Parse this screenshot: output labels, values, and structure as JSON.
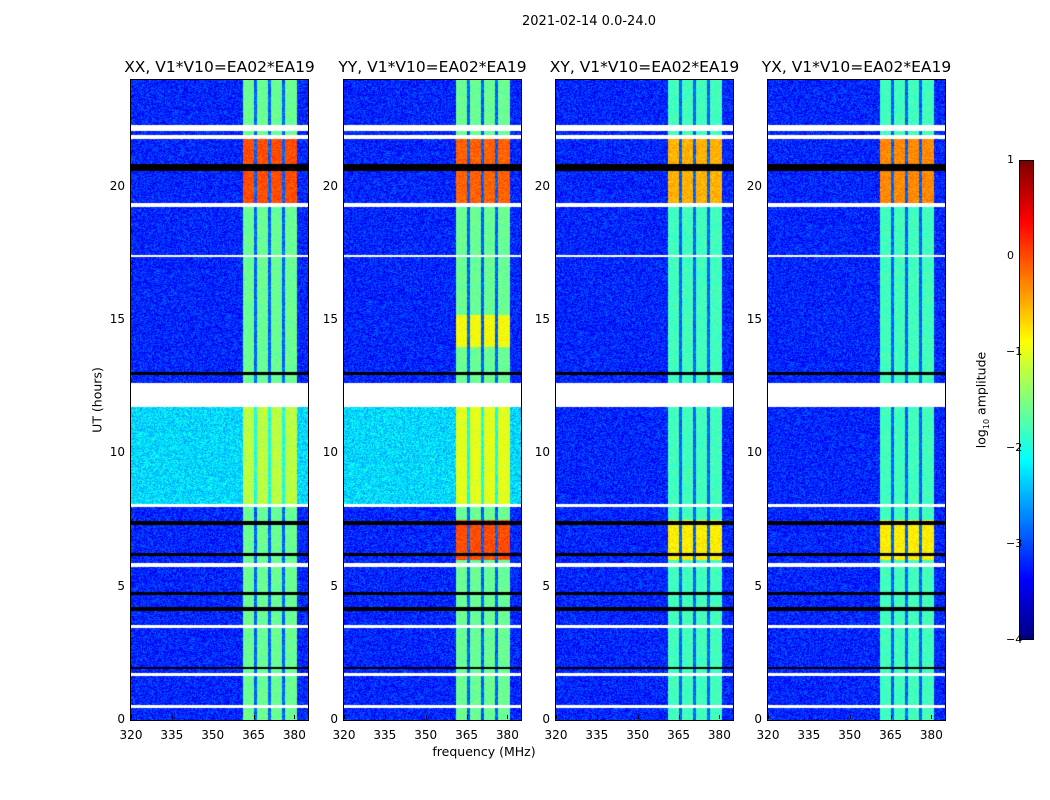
{
  "suptitle": "2021-02-14 0.0-24.0",
  "chart_data": {
    "type": "heatmap",
    "xlabel": "frequency (MHz)",
    "ylabel": "UT (hours)",
    "xlim": [
      320,
      385
    ],
    "ylim": [
      0,
      24
    ],
    "xticks": [
      "320",
      "335",
      "350",
      "365",
      "380"
    ],
    "xtick_values": [
      320,
      335,
      350,
      365,
      380
    ],
    "yticks": [
      "0",
      "5",
      "10",
      "15",
      "20"
    ],
    "ytick_values": [
      0,
      5,
      10,
      15,
      20
    ],
    "colorbar": {
      "label_pre": "log",
      "label_sub": "10",
      "label_post": " amplitude",
      "range": [
        -4,
        1
      ],
      "ticks": [
        "1",
        "0",
        "−1",
        "−2",
        "−3",
        "−4"
      ],
      "tick_values": [
        1,
        0,
        -1,
        -2,
        -3,
        -4
      ],
      "colormap": "jet"
    },
    "background_level": -3.2,
    "signal_band_mhz": [
      361,
      380.8
    ],
    "signal_gap_channels_mhz": [
      365.7,
      370.9,
      376.0
    ],
    "flagged_white_hours": [
      [
        22.1,
        22.3
      ],
      [
        21.8,
        21.95
      ],
      [
        19.25,
        19.4
      ],
      [
        17.35,
        17.45
      ],
      [
        11.75,
        12.65
      ],
      [
        8.0,
        8.1
      ],
      [
        5.75,
        5.9
      ],
      [
        3.45,
        3.55
      ],
      [
        1.65,
        1.75
      ],
      [
        0.45,
        0.55
      ]
    ],
    "flagged_black_hours": [
      [
        20.6,
        20.85
      ],
      [
        12.95,
        13.05
      ],
      [
        7.3,
        7.45
      ],
      [
        6.15,
        6.25
      ],
      [
        4.7,
        4.8
      ],
      [
        4.1,
        4.25
      ],
      [
        1.9,
        2.0
      ]
    ],
    "panels": [
      {
        "title": "XX, V1*V10=EA02*EA19",
        "band_level": -1.6,
        "regions": [
          {
            "t": [
              19.4,
              21.8
            ],
            "band": 0.0,
            "bg": -3.2
          },
          {
            "t": [
              8.1,
              11.75
            ],
            "band": -1.2,
            "bg": -2.3
          }
        ]
      },
      {
        "title": "YY, V1*V10=EA02*EA19",
        "band_level": -1.6,
        "regions": [
          {
            "t": [
              19.4,
              21.8
            ],
            "band": -0.1,
            "bg": -3.2
          },
          {
            "t": [
              8.1,
              11.75
            ],
            "band": -1.0,
            "bg": -2.3
          },
          {
            "t": [
              6.0,
              7.5
            ],
            "band": 0.0,
            "bg": -3.2
          },
          {
            "t": [
              14.0,
              15.2
            ],
            "band": -0.9,
            "bg": -3.2
          }
        ]
      },
      {
        "title": "XY, V1*V10=EA02*EA19",
        "band_level": -1.8,
        "regions": [
          {
            "t": [
              19.4,
              21.8
            ],
            "band": -0.5,
            "bg": -3.2
          },
          {
            "t": [
              6.0,
              7.5
            ],
            "band": -0.8,
            "bg": -3.2
          }
        ]
      },
      {
        "title": "YX, V1*V10=EA02*EA19",
        "band_level": -1.8,
        "regions": [
          {
            "t": [
              19.4,
              21.8
            ],
            "band": -0.3,
            "bg": -3.2
          },
          {
            "t": [
              6.0,
              7.5
            ],
            "band": -0.8,
            "bg": -3.2
          }
        ]
      }
    ]
  }
}
